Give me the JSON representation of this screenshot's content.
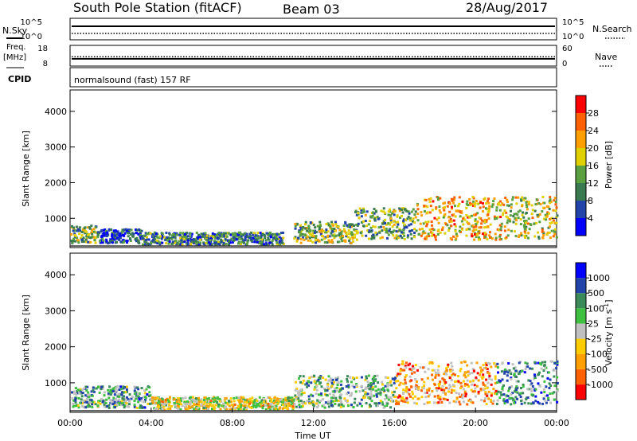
{
  "header": {
    "station": "South Pole Station (fitACF)",
    "beam": "Beam 03",
    "date": "28/Aug/2017"
  },
  "side_labels": {
    "nsky": "N.Sky",
    "freq_top": "Freq.",
    "freq_unit": "[MHz]",
    "cpid": "CPID",
    "nsearch": "N.Search",
    "nave": "Nave"
  },
  "cpid_text": "normalsound (fast) 157 RF",
  "time_axis": {
    "label": "Time UT",
    "ticks": [
      "00:00",
      "04:00",
      "08:00",
      "12:00",
      "16:00",
      "20:00",
      "00:00"
    ],
    "range_hours": [
      0,
      24
    ]
  },
  "colors": {
    "power_scale": [
      "#0000ff",
      "#2244aa",
      "#3a7a50",
      "#5aa040",
      "#e0d000",
      "#ffa000",
      "#ff6000",
      "#ff0000"
    ],
    "velocity_scale": [
      "#ff0000",
      "#ff6000",
      "#ffa000",
      "#ffcc00",
      "#c0c0c0",
      "#40c040",
      "#3a8a5a",
      "#2244aa",
      "#0000ff"
    ]
  },
  "chart_data": [
    {
      "type": "line",
      "name": "nsky_nsearch",
      "ylabel_left": "N.Sky",
      "ylabel_right": "N.Search",
      "yticks_left": [
        "10^5",
        "10^0"
      ],
      "yticks_right": [
        "10^5",
        "10^0"
      ]
    },
    {
      "type": "line",
      "name": "freq_nave",
      "ylabel_left": "Freq. [MHz]",
      "ylabel_right": "Nave",
      "ylim_left": [
        8,
        18
      ],
      "ylim_right": [
        0,
        60
      ],
      "yticks_left": [
        "18",
        "8"
      ],
      "yticks_right": [
        "60",
        "0"
      ],
      "series": [
        {
          "name": "Freq.",
          "values": [
            11.5
          ]
        },
        {
          "name": "Nave",
          "values": [
            27
          ]
        }
      ]
    },
    {
      "type": "heatmap",
      "name": "power",
      "ylabel": "Slant Range [km]",
      "ylim": [
        180,
        4600
      ],
      "yticks": [
        "1000",
        "2000",
        "3000",
        "4000"
      ],
      "colorbar_label": "Power [dB]",
      "colorbar_ticks": [
        "4",
        "8",
        "12",
        "16",
        "20",
        "24",
        "28"
      ],
      "colorbar_range": [
        0,
        32
      ],
      "regions": [
        {
          "t0": 0.0,
          "t1": 1.3,
          "r0": 300,
          "r1": 800,
          "level": 0.45
        },
        {
          "t0": 1.3,
          "t1": 3.5,
          "r0": 300,
          "r1": 700,
          "level": 0.2
        },
        {
          "t0": 3.5,
          "t1": 10.5,
          "r0": 250,
          "r1": 600,
          "level": 0.3
        },
        {
          "t0": 11.0,
          "t1": 14.0,
          "r0": 300,
          "r1": 900,
          "level": 0.45
        },
        {
          "t0": 14.0,
          "t1": 17.0,
          "r0": 400,
          "r1": 1300,
          "level": 0.4
        },
        {
          "t0": 17.0,
          "t1": 21.5,
          "r0": 400,
          "r1": 1600,
          "level": 0.65
        },
        {
          "t0": 21.5,
          "t1": 24.0,
          "r0": 400,
          "r1": 1600,
          "level": 0.55
        }
      ]
    },
    {
      "type": "heatmap",
      "name": "velocity",
      "ylabel": "Slant Range [km]",
      "xlabel": "Time UT",
      "ylim": [
        180,
        4600
      ],
      "yticks": [
        "1000",
        "2000",
        "3000",
        "4000"
      ],
      "colorbar_label": "Velocity [m s^-1]",
      "colorbar_ticks": [
        "1000",
        "500",
        "100",
        "25",
        "-25",
        "-100",
        "-500",
        "-1000"
      ],
      "regions": [
        {
          "t0": 0.0,
          "t1": 4.0,
          "r0": 300,
          "r1": 900,
          "level": 0.65
        },
        {
          "t0": 4.0,
          "t1": 11.0,
          "r0": 250,
          "r1": 600,
          "level": 0.45
        },
        {
          "t0": 11.0,
          "t1": 16.0,
          "r0": 300,
          "r1": 1200,
          "level": 0.6
        },
        {
          "t0": 16.0,
          "t1": 21.0,
          "r0": 400,
          "r1": 1600,
          "level": 0.3
        },
        {
          "t0": 21.0,
          "t1": 24.0,
          "r0": 400,
          "r1": 1600,
          "level": 0.7
        }
      ]
    }
  ]
}
